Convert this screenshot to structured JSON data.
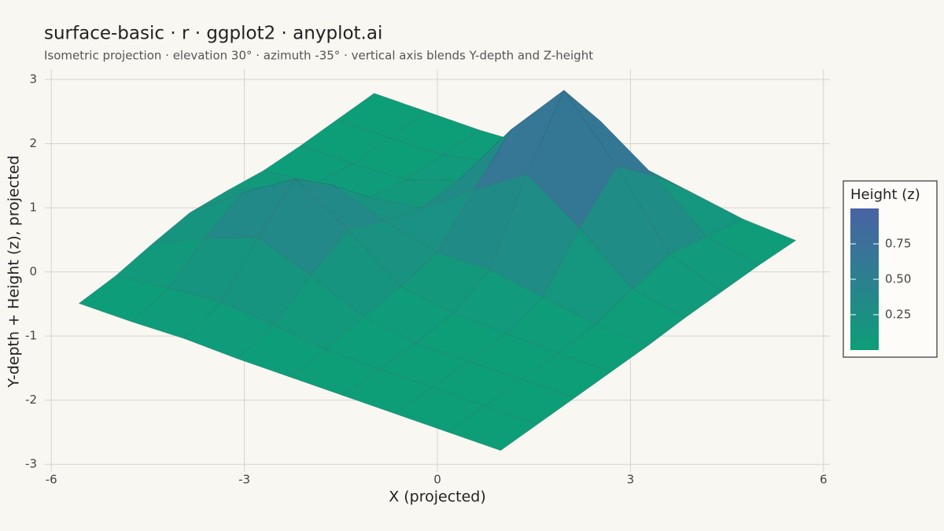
{
  "chart_data": {
    "type": "surface",
    "title": "surface-basic · r · ggplot2 · anyplot.ai",
    "subtitle": "Isometric projection · elevation 30° · azimuth -35° · vertical axis blends Y-depth and Z-height",
    "x_label": "X (projected)",
    "y_label": "Y-depth + Height (z), projected",
    "xlim": [
      -6.1,
      6.1
    ],
    "ylim": [
      -3.12,
      3.16
    ],
    "xticks": [
      -6,
      -3,
      0,
      3,
      6
    ],
    "yticks": [
      -3,
      -2,
      -1,
      0,
      1,
      2,
      3
    ],
    "grid": true,
    "x": [
      -4,
      -3,
      -2,
      -1,
      0,
      1,
      2,
      3,
      4
    ],
    "y": [
      -4,
      -3,
      -2,
      -1,
      0,
      1,
      2,
      3,
      4
    ],
    "z": [
      [
        0,
        0,
        0.01,
        0,
        0,
        0,
        0,
        0,
        0
      ],
      [
        0.01,
        0.05,
        0.08,
        0.05,
        0.01,
        0,
        0,
        0,
        0
      ],
      [
        0.05,
        0.21,
        0.34,
        0.21,
        0.05,
        0,
        0,
        0,
        0
      ],
      [
        0.08,
        0.34,
        0.56,
        0.34,
        0.08,
        0.02,
        0.01,
        0,
        0
      ],
      [
        0.05,
        0.21,
        0.34,
        0.22,
        0.13,
        0.14,
        0.08,
        0.02,
        0
      ],
      [
        0.01,
        0.05,
        0.08,
        0.13,
        0.38,
        0.61,
        0.37,
        0.08,
        0.01
      ],
      [
        0,
        0,
        0.02,
        0.14,
        0.61,
        1,
        0.61,
        0.14,
        0.01
      ],
      [
        0,
        0,
        0.01,
        0.08,
        0.37,
        0.61,
        0.37,
        0.08,
        0.01
      ],
      [
        0,
        0,
        0,
        0.02,
        0.08,
        0.14,
        0.08,
        0.02,
        0
      ]
    ],
    "colorbar": {
      "title": "Height (z)",
      "limits": [
        0,
        1
      ],
      "ticks": [
        0.25,
        {
          "value": 0.5,
          "label": "0.50"
        },
        0.75
      ],
      "low_color": "#0d9e78",
      "high_color": "#4a62a5"
    }
  }
}
